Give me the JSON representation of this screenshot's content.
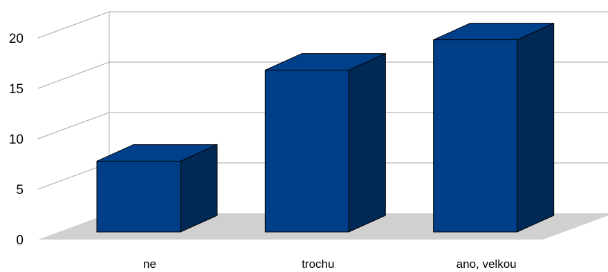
{
  "chart_data": {
    "type": "bar",
    "style": "3d-column",
    "categories": [
      "ne",
      "trochu",
      "ano, velkou"
    ],
    "values": [
      7,
      16,
      19
    ],
    "ylim": [
      0,
      20
    ],
    "yticks": [
      0,
      5,
      10,
      15,
      20
    ],
    "grid": true,
    "legend": "none",
    "title": "",
    "xlabel": "",
    "ylabel": "",
    "colors": {
      "front": "#003f87",
      "top": "#00408a",
      "side": "#002a55",
      "floor": "#d0d0d0",
      "grid": "#a6a6a6",
      "edge": "#000000"
    }
  }
}
